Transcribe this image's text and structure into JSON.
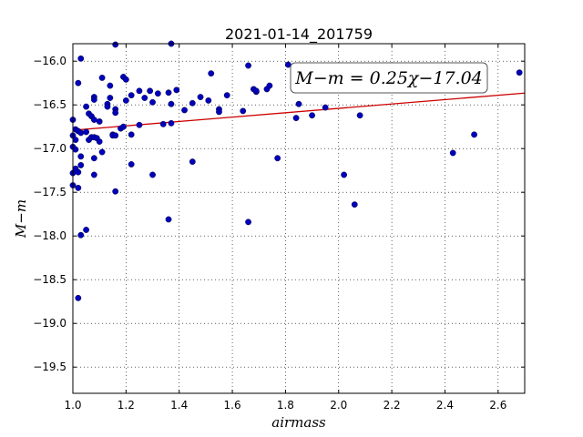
{
  "chart_data": {
    "type": "scatter",
    "title": "2021-01-14_201759",
    "xlabel": "airmass",
    "ylabel": "M−m",
    "xlim": [
      1.0,
      2.7
    ],
    "ylim": [
      -19.8,
      -15.8
    ],
    "y_inverted": false,
    "grid": true,
    "x_ticks": [
      1.0,
      1.2,
      1.4,
      1.6,
      1.8,
      2.0,
      2.2,
      2.4,
      2.6
    ],
    "x_tick_labels": [
      "1.0",
      "1.2",
      "1.4",
      "1.6",
      "1.8",
      "2.0",
      "2.2",
      "2.4",
      "2.6"
    ],
    "y_ticks": [
      -16.0,
      -16.5,
      -17.0,
      -17.5,
      -18.0,
      -18.5,
      -19.0,
      -19.5
    ],
    "y_tick_labels": [
      "−16.0",
      "−16.5",
      "−17.0",
      "−17.5",
      "−18.0",
      "−18.5",
      "−19.0",
      "−19.5"
    ],
    "annotation": "M−m = 0.25χ−17.04",
    "fit_line": {
      "slope": 0.25,
      "intercept": -17.04,
      "color": "#cc0000"
    },
    "point_color": "#0000bb",
    "points": [
      [
        1.0,
        -16.67
      ],
      [
        1.0,
        -16.85
      ],
      [
        1.0,
        -16.98
      ],
      [
        1.0,
        -17.28
      ],
      [
        1.0,
        -17.42
      ],
      [
        1.01,
        -16.78
      ],
      [
        1.01,
        -16.9
      ],
      [
        1.01,
        -17.01
      ],
      [
        1.01,
        -17.23
      ],
      [
        1.02,
        -16.25
      ],
      [
        1.02,
        -16.8
      ],
      [
        1.02,
        -17.27
      ],
      [
        1.02,
        -17.45
      ],
      [
        1.02,
        -18.71
      ],
      [
        1.03,
        -15.97
      ],
      [
        1.03,
        -16.82
      ],
      [
        1.03,
        -17.09
      ],
      [
        1.03,
        -17.19
      ],
      [
        1.03,
        -17.99
      ],
      [
        1.05,
        -16.52
      ],
      [
        1.05,
        -16.81
      ],
      [
        1.05,
        -17.93
      ],
      [
        1.06,
        -16.6
      ],
      [
        1.06,
        -16.9
      ],
      [
        1.07,
        -16.63
      ],
      [
        1.07,
        -16.87
      ],
      [
        1.08,
        -16.41
      ],
      [
        1.08,
        -16.44
      ],
      [
        1.08,
        -16.67
      ],
      [
        1.08,
        -16.87
      ],
      [
        1.08,
        -17.11
      ],
      [
        1.08,
        -17.3
      ],
      [
        1.09,
        -16.88
      ],
      [
        1.1,
        -16.92
      ],
      [
        1.1,
        -16.69
      ],
      [
        1.11,
        -16.19
      ],
      [
        1.11,
        -17.04
      ],
      [
        1.13,
        -16.49
      ],
      [
        1.13,
        -16.52
      ],
      [
        1.14,
        -16.42
      ],
      [
        1.14,
        -16.28
      ],
      [
        1.15,
        -16.84
      ],
      [
        1.15,
        -16.85
      ],
      [
        1.16,
        -15.81
      ],
      [
        1.16,
        -16.55
      ],
      [
        1.16,
        -16.59
      ],
      [
        1.16,
        -16.85
      ],
      [
        1.16,
        -17.49
      ],
      [
        1.18,
        -16.77
      ],
      [
        1.19,
        -16.18
      ],
      [
        1.19,
        -16.75
      ],
      [
        1.2,
        -16.21
      ],
      [
        1.2,
        -16.45
      ],
      [
        1.22,
        -16.39
      ],
      [
        1.22,
        -16.84
      ],
      [
        1.22,
        -17.18
      ],
      [
        1.25,
        -16.34
      ],
      [
        1.25,
        -16.73
      ],
      [
        1.27,
        -16.42
      ],
      [
        1.29,
        -16.34
      ],
      [
        1.3,
        -16.47
      ],
      [
        1.3,
        -17.3
      ],
      [
        1.32,
        -16.37
      ],
      [
        1.34,
        -16.72
      ],
      [
        1.36,
        -16.36
      ],
      [
        1.36,
        -17.81
      ],
      [
        1.37,
        -15.78
      ],
      [
        1.37,
        -16.49
      ],
      [
        1.37,
        -16.71
      ],
      [
        1.39,
        -16.33
      ],
      [
        1.42,
        -16.56
      ],
      [
        1.45,
        -16.48
      ],
      [
        1.45,
        -17.15
      ],
      [
        1.48,
        -16.41
      ],
      [
        1.51,
        -16.45
      ],
      [
        1.52,
        -16.14
      ],
      [
        1.55,
        -16.55
      ],
      [
        1.55,
        -16.58
      ],
      [
        1.58,
        -16.39
      ],
      [
        1.64,
        -16.57
      ],
      [
        1.66,
        -16.05
      ],
      [
        1.66,
        -17.84
      ],
      [
        1.68,
        -16.32
      ],
      [
        1.69,
        -16.35
      ],
      [
        1.69,
        -16.34
      ],
      [
        1.73,
        -16.32
      ],
      [
        1.74,
        -16.28
      ],
      [
        1.77,
        -17.11
      ],
      [
        1.81,
        -16.04
      ],
      [
        1.84,
        -16.65
      ],
      [
        1.85,
        -16.49
      ],
      [
        1.9,
        -16.62
      ],
      [
        1.95,
        -16.53
      ],
      [
        2.02,
        -17.3
      ],
      [
        2.06,
        -17.64
      ],
      [
        2.08,
        -16.62
      ],
      [
        2.43,
        -17.05
      ],
      [
        2.51,
        -16.84
      ],
      [
        2.68,
        -16.13
      ]
    ]
  }
}
